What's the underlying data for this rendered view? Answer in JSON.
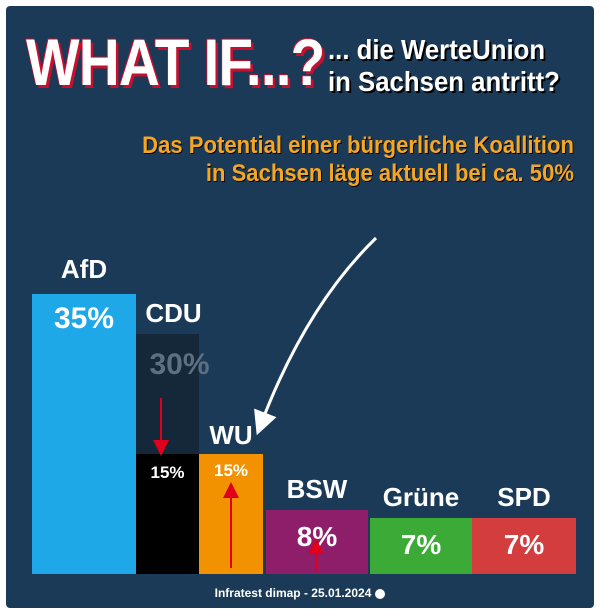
{
  "header": {
    "headline": "WHAT IF...?",
    "subhead": "... die WerteUnion in Sachsen antritt?",
    "potential_line1": "Das Potential einer bürgerliche Koallition",
    "potential_line2": "in Sachsen läge aktuell bei ca. 50%"
  },
  "source": "Infratest dimap - 25.01.2024",
  "colors": {
    "background": "#1b3a57",
    "afd": "#1fa8e8",
    "cdu": "#000000",
    "cdu_ghost": "#14283a",
    "wu": "#f39200",
    "bsw": "#8e1e6a",
    "gruene": "#3caa36",
    "spd": "#d43d3d",
    "arrow": "#e0001b",
    "accent_text": "#f5a623"
  },
  "chart_data": {
    "type": "bar",
    "series": [
      {
        "party": "AfD",
        "value_label": "35%",
        "value": 35,
        "color": "#1fa8e8"
      },
      {
        "party": "CDU",
        "value_label": "30%",
        "value": 30,
        "color": "#14283a",
        "split_value_label": "15%",
        "split_value": 15,
        "split_color": "#000000"
      },
      {
        "party": "WU",
        "value_label": "15%",
        "value": 15,
        "color": "#f39200"
      },
      {
        "party": "BSW",
        "value_label": "8%",
        "value": 8,
        "color": "#8e1e6a"
      },
      {
        "party": "Grüne",
        "value_label": "7%",
        "value": 7,
        "color": "#3caa36"
      },
      {
        "party": "SPD",
        "value_label": "7%",
        "value": 7,
        "color": "#d43d3d"
      }
    ]
  }
}
